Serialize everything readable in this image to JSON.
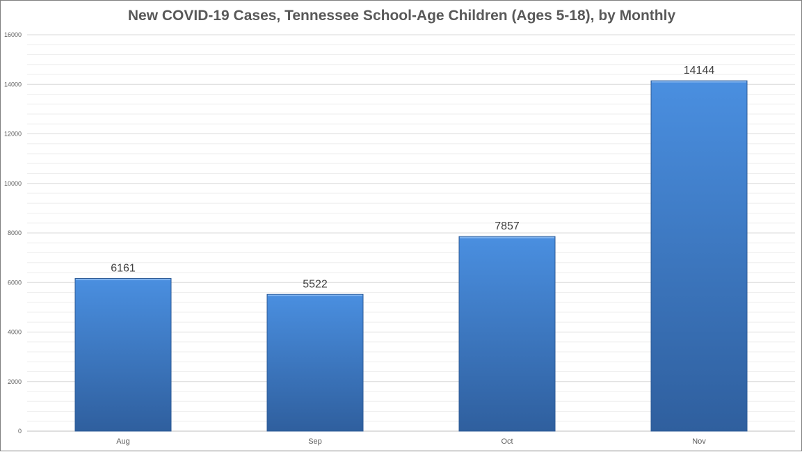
{
  "chart_data": {
    "type": "bar",
    "title": "New COVID-19 Cases, Tennessee School-Age Children (Ages 5-18), by Monthly",
    "categories": [
      "Aug",
      "Sep",
      "Oct",
      "Nov"
    ],
    "values": [
      6161,
      5522,
      7857,
      14144
    ],
    "data_labels": [
      "6161",
      "5522",
      "7857",
      "14144"
    ],
    "xlabel": "",
    "ylabel": "",
    "ylim": [
      0,
      16000
    ],
    "yticks": [
      0,
      2000,
      4000,
      6000,
      8000,
      10000,
      12000,
      14000,
      16000
    ],
    "ytick_labels": [
      "0",
      "2000",
      "4000",
      "6000",
      "8000",
      "10000",
      "12000",
      "14000",
      "16000"
    ],
    "grid": true,
    "minor_grid": true,
    "legend": "none",
    "colors": {
      "bar_top": "#4a8fe0",
      "bar_bottom": "#2f5f9e",
      "bar_stroke": "#2c5a96",
      "grid_major": "#d9d9d9",
      "grid_minor": "#eeeeee",
      "text": "#595959"
    }
  }
}
